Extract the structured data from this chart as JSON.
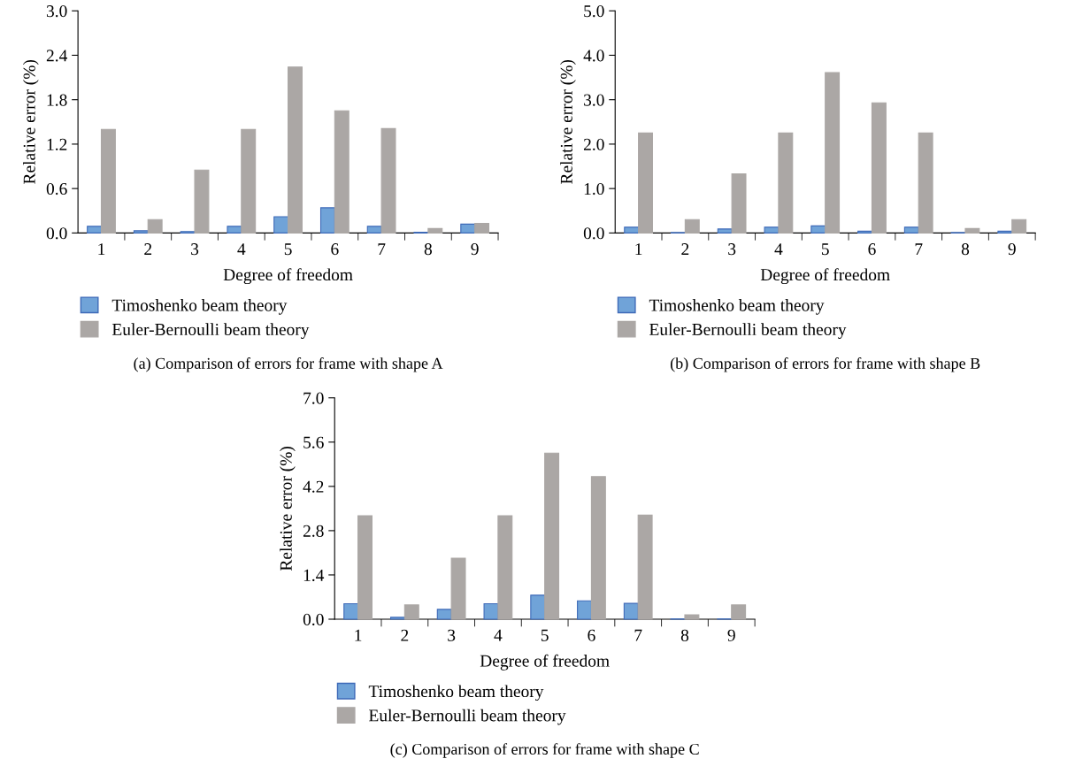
{
  "chart_data": [
    {
      "type": "bar",
      "xlabel": "Degree of freedom",
      "ylabel": "Relative error (%)",
      "categories": [
        "1",
        "2",
        "3",
        "4",
        "5",
        "6",
        "7",
        "8",
        "9"
      ],
      "ylim": [
        0,
        3.0
      ],
      "yticks": [
        {
          "value": 0,
          "label": "0.0"
        },
        {
          "value": 0.6,
          "label": "0.6"
        },
        {
          "value": 1.2,
          "label": "1.2"
        },
        {
          "value": 1.8,
          "label": "1.8"
        },
        {
          "value": 2.4,
          "label": "2.4"
        },
        {
          "value": 3.0,
          "label": "3.0"
        }
      ],
      "grid": false,
      "legend": "bottom",
      "annotations": [
        "(a) Comparison of errors for frame with shape A"
      ],
      "series": [
        {
          "name": "Timoshenko beam theory",
          "color": "#70a3d8",
          "values": [
            0.09,
            0.03,
            0.02,
            0.09,
            0.22,
            0.34,
            0.09,
            0.01,
            0.12
          ]
        },
        {
          "name": "Euler-Bernoulli beam theory",
          "color": "#aba7a5",
          "values": [
            1.4,
            0.18,
            0.85,
            1.4,
            2.24,
            1.65,
            1.41,
            0.06,
            0.13
          ]
        }
      ]
    },
    {
      "type": "bar",
      "xlabel": "Degree of freedom",
      "ylabel": "Relative error (%)",
      "categories": [
        "1",
        "2",
        "3",
        "4",
        "5",
        "6",
        "7",
        "8",
        "9"
      ],
      "ylim": [
        0,
        5.0
      ],
      "yticks": [
        {
          "value": 0,
          "label": "0.0"
        },
        {
          "value": 1.0,
          "label": "1.0"
        },
        {
          "value": 2.0,
          "label": "2.0"
        },
        {
          "value": 3.0,
          "label": "3.0"
        },
        {
          "value": 4.0,
          "label": "4.0"
        },
        {
          "value": 5.0,
          "label": "5.0"
        }
      ],
      "grid": false,
      "legend": "bottom",
      "annotations": [
        "(b) Comparison of errors for frame with shape B"
      ],
      "series": [
        {
          "name": "Timoshenko beam theory",
          "color": "#70a3d8",
          "values": [
            0.13,
            0.01,
            0.09,
            0.13,
            0.16,
            0.04,
            0.13,
            0.01,
            0.04
          ]
        },
        {
          "name": "Euler-Bernoulli beam theory",
          "color": "#aba7a5",
          "values": [
            2.25,
            0.3,
            1.33,
            2.25,
            3.61,
            2.93,
            2.25,
            0.1,
            0.3
          ]
        }
      ]
    },
    {
      "type": "bar",
      "xlabel": "Degree of freedom",
      "ylabel": "Relative error (%)",
      "categories": [
        "1",
        "2",
        "3",
        "4",
        "5",
        "6",
        "7",
        "8",
        "9"
      ],
      "ylim": [
        0,
        7.0
      ],
      "yticks": [
        {
          "value": 0,
          "label": "0.0"
        },
        {
          "value": 1.4,
          "label": "1.4"
        },
        {
          "value": 2.8,
          "label": "2.8"
        },
        {
          "value": 4.2,
          "label": "4.2"
        },
        {
          "value": 5.6,
          "label": "5.6"
        },
        {
          "value": 7.0,
          "label": "7.0"
        }
      ],
      "grid": false,
      "legend": "bottom",
      "annotations": [
        "(c) Comparison of errors for frame with shape C"
      ],
      "series": [
        {
          "name": "Timoshenko beam theory",
          "color": "#70a3d8",
          "values": [
            0.49,
            0.06,
            0.31,
            0.49,
            0.76,
            0.58,
            0.5,
            0.01,
            0.01
          ]
        },
        {
          "name": "Euler-Bernoulli beam theory",
          "color": "#aba7a5",
          "values": [
            3.27,
            0.45,
            1.93,
            3.27,
            5.25,
            4.51,
            3.29,
            0.14,
            0.45
          ]
        }
      ]
    }
  ]
}
